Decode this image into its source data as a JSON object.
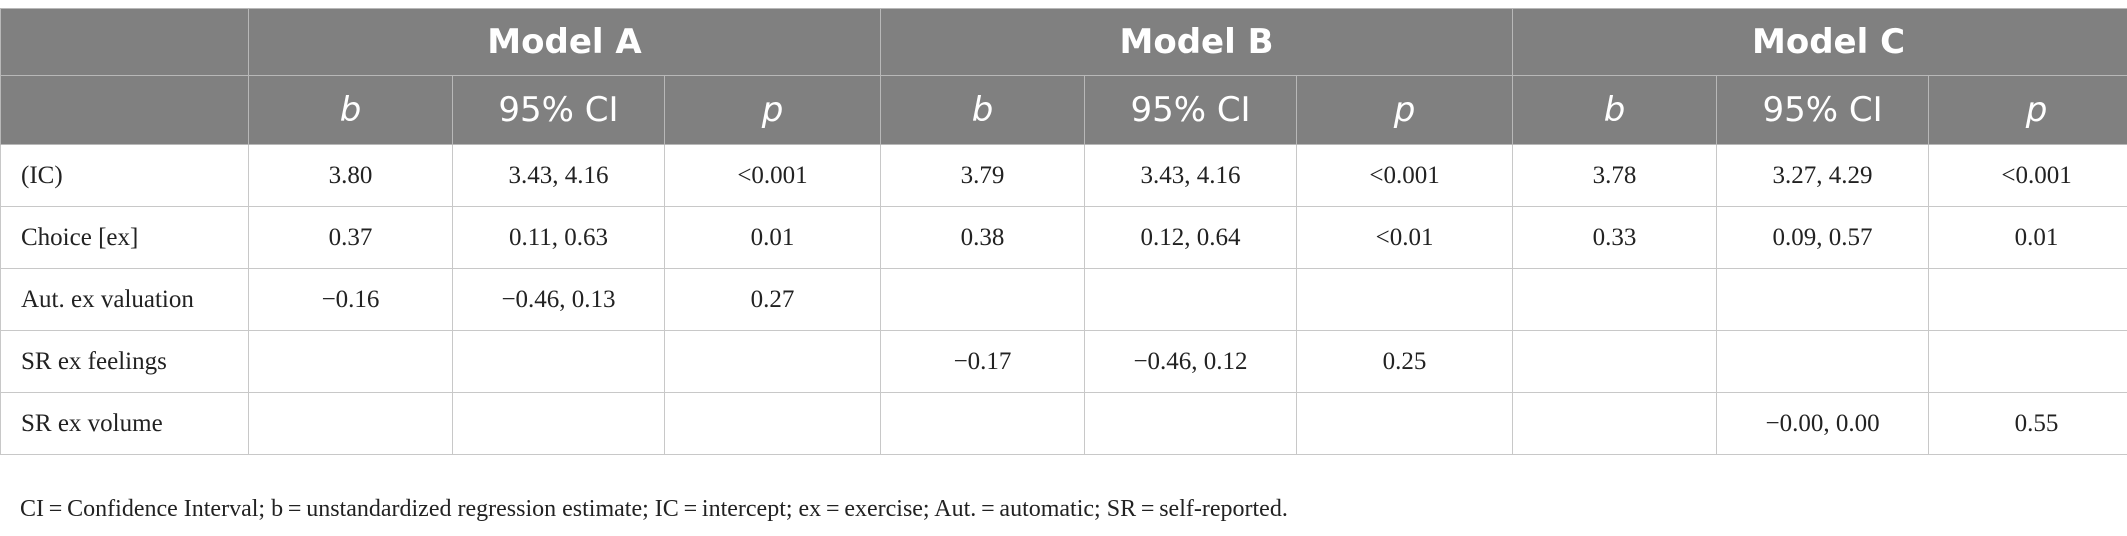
{
  "models": [
    {
      "name": "Model A",
      "subheaders": [
        "b",
        "95% CI",
        "p"
      ]
    },
    {
      "name": "Model B",
      "subheaders": [
        "b",
        "95% CI",
        "p"
      ]
    },
    {
      "name": "Model C",
      "subheaders": [
        "b",
        "95% CI",
        "p"
      ]
    }
  ],
  "rows": [
    {
      "label": "(IC)",
      "cells": [
        "3.80",
        "3.43, 4.16",
        "<0.001",
        "3.79",
        "3.43, 4.16",
        "<0.001",
        "3.78",
        "3.27, 4.29",
        "<0.001"
      ]
    },
    {
      "label": "Choice [ex]",
      "cells": [
        "0.37",
        "0.11, 0.63",
        "0.01",
        "0.38",
        "0.12, 0.64",
        "<0.01",
        "0.33",
        "0.09, 0.57",
        "0.01"
      ]
    },
    {
      "label": "Aut. ex valuation",
      "cells": [
        "−0.16",
        "−0.46, 0.13",
        "0.27",
        "",
        "",
        "",
        "",
        "",
        ""
      ]
    },
    {
      "label": "SR ex feelings",
      "cells": [
        "",
        "",
        "",
        "−0.17",
        "−0.46, 0.12",
        "0.25",
        "",
        "",
        ""
      ]
    },
    {
      "label": "SR ex volume",
      "cells": [
        "",
        "",
        "",
        "",
        "",
        "",
        "",
        "−0.00, 0.00",
        "0.55"
      ]
    }
  ],
  "footnote": "CI = Confidence Interval; b = unstandardized regression estimate; IC = intercept; ex = exercise; Aut. = automatic; SR = self-reported.",
  "colors": {
    "header_bg": "#808080",
    "header_text": "#ffffff",
    "border": "#c8c8c8"
  }
}
